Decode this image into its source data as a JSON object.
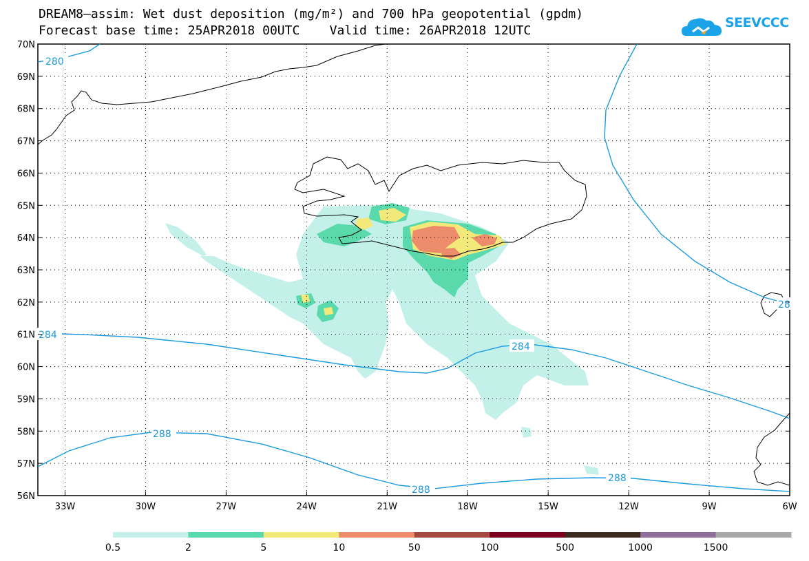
{
  "header": {
    "title_line1": "DREAM8—assim: Wet dust deposition (mg/m²) and 700 hPa geopotential (gpdm)",
    "title_line2": "Forecast base time: 25APR2018 00UTC    Valid time: 26APR2018 12UTC"
  },
  "logo": {
    "text": "SEEVCCC",
    "icon": "cloud-logo-icon",
    "color": "#1aa3e8"
  },
  "map": {
    "latitudes": [
      "70N",
      "69N",
      "68N",
      "67N",
      "66N",
      "65N",
      "64N",
      "63N",
      "62N",
      "61N",
      "60N",
      "59N",
      "58N",
      "57N",
      "56N"
    ],
    "longitudes": [
      "33W",
      "30W",
      "27W",
      "24W",
      "21W",
      "18W",
      "15W",
      "12W",
      "9W",
      "6W"
    ],
    "contour_color": "#1b9ae0",
    "coast_color": "#000000",
    "contour_labels": [
      {
        "id": "280",
        "text": "280"
      },
      {
        "id": "284a",
        "text": "284"
      },
      {
        "id": "284b",
        "text": "284"
      },
      {
        "id": "288a",
        "text": "288"
      },
      {
        "id": "288b",
        "text": "288"
      },
      {
        "id": "288c",
        "text": "288"
      },
      {
        "id": "28",
        "text": "28"
      }
    ]
  },
  "legend": {
    "colors": [
      "#c3f1e9",
      "#5ad9ac",
      "#f3e87a",
      "#ec8c6a",
      "#a24a40",
      "#7a0020",
      "#3c2a1e",
      "#8f6f9a",
      "#a8a8a8"
    ],
    "labels": [
      "0.5",
      "2",
      "5",
      "10",
      "50",
      "100",
      "500",
      "1000",
      "1500"
    ]
  }
}
